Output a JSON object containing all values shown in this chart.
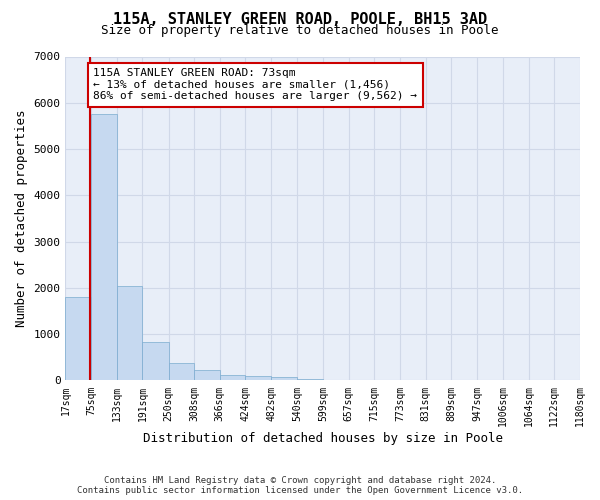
{
  "title_line1": "115A, STANLEY GREEN ROAD, POOLE, BH15 3AD",
  "title_line2": "Size of property relative to detached houses in Poole",
  "xlabel": "Distribution of detached houses by size in Poole",
  "ylabel": "Number of detached properties",
  "bin_edges": [
    17,
    75,
    133,
    191,
    250,
    308,
    366,
    424,
    482,
    540,
    599,
    657,
    715,
    773,
    831,
    889,
    947,
    1006,
    1064,
    1122,
    1180
  ],
  "bar_heights": [
    1800,
    5750,
    2050,
    830,
    380,
    230,
    120,
    90,
    70,
    35,
    20,
    8,
    5,
    3,
    2,
    1,
    1,
    0,
    0,
    0
  ],
  "bar_color": "#c6d9f0",
  "bar_edge_color": "#7aabcf",
  "property_size": 73,
  "property_line_color": "#cc0000",
  "annotation_text": "115A STANLEY GREEN ROAD: 73sqm\n← 13% of detached houses are smaller (1,456)\n86% of semi-detached houses are larger (9,562) →",
  "annotation_box_color": "#ffffff",
  "annotation_box_edge_color": "#cc0000",
  "ylim": [
    0,
    7000
  ],
  "yticks": [
    0,
    1000,
    2000,
    3000,
    4000,
    5000,
    6000,
    7000
  ],
  "grid_color": "#d0d8e8",
  "background_color": "#e8eef8",
  "footer_line1": "Contains HM Land Registry data © Crown copyright and database right 2024.",
  "footer_line2": "Contains public sector information licensed under the Open Government Licence v3.0.",
  "tick_label_fontsize": 7,
  "axis_label_fontsize": 9,
  "title1_fontsize": 11,
  "title2_fontsize": 9,
  "annotation_fontsize": 8
}
